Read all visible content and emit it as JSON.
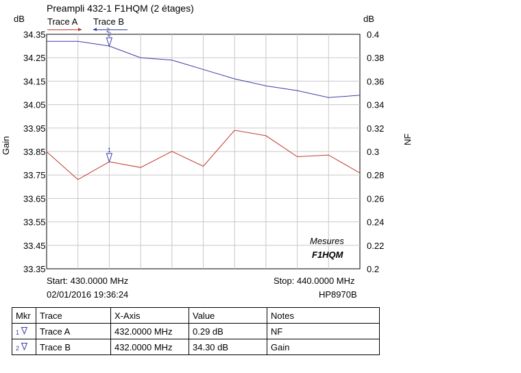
{
  "chart_data": {
    "type": "line",
    "title": "Preampli 432-1 F1HQM (2 étages)",
    "x": [
      430,
      431,
      432,
      433,
      434,
      435,
      436,
      437,
      438,
      439,
      440
    ],
    "xlim": [
      430,
      440
    ],
    "grid": true,
    "legend_placement": "top-left",
    "y_left": {
      "label": "Gain",
      "unit": "dB",
      "ylim": [
        33.35,
        34.35
      ],
      "ticks": [
        "34.35",
        "34.25",
        "34.15",
        "34.05",
        "33.95",
        "33.85",
        "33.75",
        "33.65",
        "33.55",
        "33.45",
        "33.35"
      ]
    },
    "y_right": {
      "label": "NF",
      "unit": "dB",
      "ylim": [
        0.2,
        0.4
      ],
      "ticks": [
        "0.4",
        "0.38",
        "0.36",
        "0.34",
        "0.32",
        "0.3",
        "0.28",
        "0.26",
        "0.24",
        "0.22",
        "0.2"
      ]
    },
    "series": [
      {
        "name": "Trace A",
        "axis": "right",
        "color": "#c0392b",
        "values": [
          0.2998,
          0.2761,
          0.2913,
          0.2864,
          0.3001,
          0.2874,
          0.3181,
          0.3135,
          0.2956,
          0.297,
          0.2817
        ]
      },
      {
        "name": "Trace B",
        "axis": "left",
        "color": "#3a3aa8",
        "values": [
          34.32,
          34.32,
          34.3,
          34.25,
          34.24,
          34.2,
          34.16,
          34.13,
          34.11,
          34.08,
          34.09
        ]
      }
    ],
    "markers": [
      {
        "id": "1",
        "series": "Trace A",
        "x": 432
      },
      {
        "id": "2",
        "series": "Trace B",
        "x": 432
      }
    ],
    "annotations": [
      "Mesures",
      "F1HQM"
    ]
  },
  "header": {
    "title": "Preampli 432-1 F1HQM (2 étages)",
    "left_unit": "dB",
    "right_unit": "dB",
    "trace_a_label": "Trace A",
    "trace_b_label": "Trace B",
    "left_axis_label": "Gain",
    "right_axis_label": "NF"
  },
  "footer": {
    "start": "Start: 430.0000 MHz",
    "stop": "Stop: 440.0000 MHz",
    "datetime": "02/01/2016 19:36:24",
    "instrument": "HP8970B"
  },
  "annotation": {
    "line1": "Mesures",
    "line2": "F1HQM"
  },
  "marker_table": {
    "headers": [
      "Mkr",
      "Trace",
      "X-Axis",
      "Value",
      "Notes"
    ],
    "rows": [
      {
        "mkr": "1",
        "trace": "Trace A",
        "x_axis": "432.0000 MHz",
        "value": "0.29 dB",
        "notes": "NF"
      },
      {
        "mkr": "2",
        "trace": "Trace B",
        "x_axis": "432.0000 MHz",
        "value": "34.30 dB",
        "notes": "Gain"
      }
    ]
  }
}
